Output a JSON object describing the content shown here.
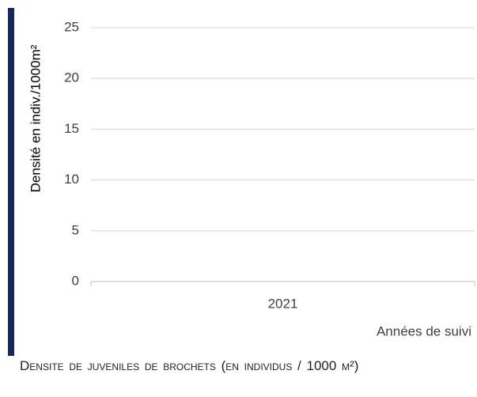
{
  "chart_data": {
    "type": "bar",
    "y_label": "Densité en indiv./1000m²",
    "x_label": "Années de suivi",
    "caption": "Densite de juveniles de brochets (en individus / 1000 m²)",
    "categories": [
      "2021"
    ],
    "values": [
      0
    ],
    "color": "#1f3864",
    "ylim": [
      0,
      25
    ],
    "yticks": [
      0,
      5,
      10,
      15,
      20,
      25
    ],
    "grid": true
  }
}
